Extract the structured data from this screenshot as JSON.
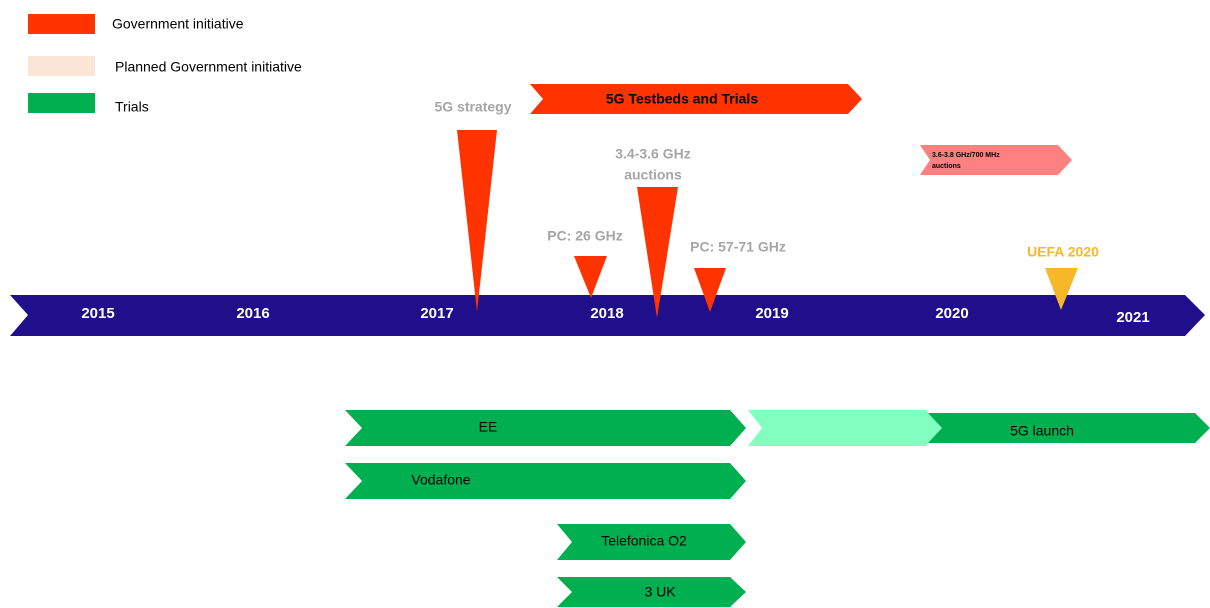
{
  "legend": [
    "Government initiative",
    "Planned Government initiative",
    "Trials"
  ],
  "years": [
    "2015",
    "2016",
    "2017",
    "2018",
    "2019",
    "2020",
    "2021"
  ],
  "events": {
    "strategy": "5G strategy",
    "testbeds": "5G Testbeds and Trials",
    "auctions": [
      "3.4-3.6 GHz",
      "auctions"
    ],
    "pc26": "PC: 26 GHz",
    "pc57": "PC: 57-71 GHz",
    "planned_auctions": [
      "3.6-3.8 GHz/700 MHz",
      "auctions"
    ],
    "uefa": "UEFA 2020"
  },
  "trials": {
    "ee": "EE",
    "vodafone": "Vodafone",
    "o2": "Telefonica O2",
    "three": "3 UK",
    "launch": "5G launch"
  }
}
